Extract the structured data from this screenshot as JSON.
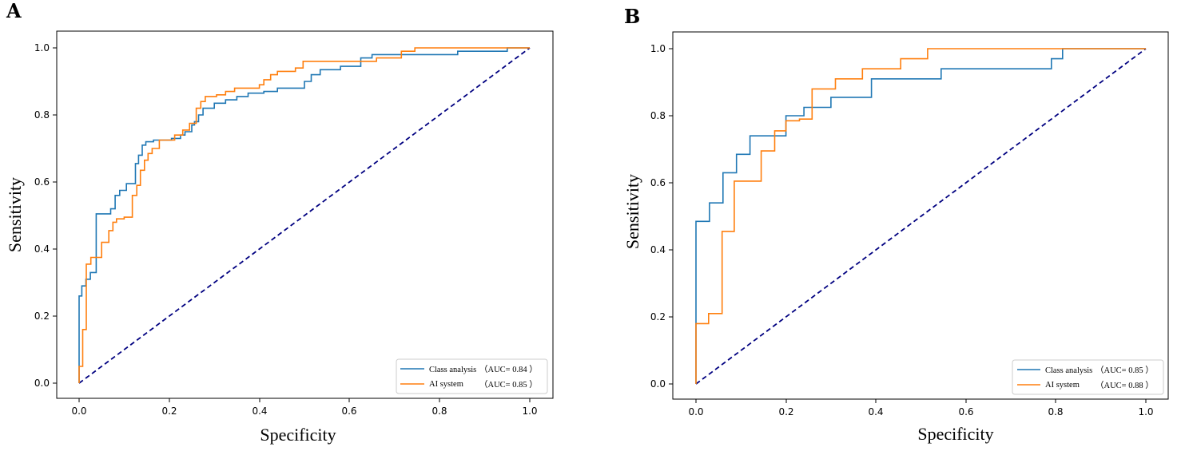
{
  "colors": {
    "class_analysis": "#1f77b4",
    "ai_system": "#ff7f0e",
    "chance": "#000080",
    "axes": "#000000"
  },
  "chart_data": [
    {
      "panel": "A",
      "type": "line",
      "xlabel": "Specificity",
      "ylabel": "Sensitivity",
      "xlim": [
        0.0,
        1.0
      ],
      "ylim": [
        0.0,
        1.0
      ],
      "xticks": [
        "0.0",
        "0.2",
        "0.4",
        "0.6",
        "0.8",
        "1.0"
      ],
      "yticks": [
        "0.0",
        "0.2",
        "0.4",
        "0.6",
        "0.8",
        "1.0"
      ],
      "grid": false,
      "legend_position": "bottom-right",
      "series": [
        {
          "name": "Class analysis",
          "auc": "（AUC= 0.84 ）",
          "color": "#1f77b4",
          "points": [
            [
              0,
              0
            ],
            [
              0,
              0.26
            ],
            [
              0.006,
              0.26
            ],
            [
              0.006,
              0.29
            ],
            [
              0.015,
              0.29
            ],
            [
              0.015,
              0.31
            ],
            [
              0.025,
              0.31
            ],
            [
              0.025,
              0.33
            ],
            [
              0.038,
              0.33
            ],
            [
              0.038,
              0.505
            ],
            [
              0.07,
              0.505
            ],
            [
              0.07,
              0.52
            ],
            [
              0.08,
              0.52
            ],
            [
              0.08,
              0.56
            ],
            [
              0.09,
              0.56
            ],
            [
              0.09,
              0.575
            ],
            [
              0.105,
              0.575
            ],
            [
              0.105,
              0.595
            ],
            [
              0.125,
              0.595
            ],
            [
              0.125,
              0.655
            ],
            [
              0.132,
              0.655
            ],
            [
              0.132,
              0.68
            ],
            [
              0.14,
              0.68
            ],
            [
              0.14,
              0.71
            ],
            [
              0.148,
              0.71
            ],
            [
              0.148,
              0.72
            ],
            [
              0.165,
              0.72
            ],
            [
              0.165,
              0.725
            ],
            [
              0.205,
              0.725
            ],
            [
              0.205,
              0.73
            ],
            [
              0.225,
              0.73
            ],
            [
              0.225,
              0.74
            ],
            [
              0.235,
              0.74
            ],
            [
              0.235,
              0.75
            ],
            [
              0.25,
              0.75
            ],
            [
              0.25,
              0.77
            ],
            [
              0.256,
              0.77
            ],
            [
              0.256,
              0.78
            ],
            [
              0.265,
              0.78
            ],
            [
              0.265,
              0.8
            ],
            [
              0.275,
              0.8
            ],
            [
              0.275,
              0.82
            ],
            [
              0.3,
              0.82
            ],
            [
              0.3,
              0.835
            ],
            [
              0.325,
              0.835
            ],
            [
              0.325,
              0.845
            ],
            [
              0.35,
              0.845
            ],
            [
              0.35,
              0.855
            ],
            [
              0.375,
              0.855
            ],
            [
              0.375,
              0.865
            ],
            [
              0.41,
              0.865
            ],
            [
              0.41,
              0.87
            ],
            [
              0.44,
              0.87
            ],
            [
              0.44,
              0.88
            ],
            [
              0.5,
              0.88
            ],
            [
              0.5,
              0.9
            ],
            [
              0.515,
              0.9
            ],
            [
              0.515,
              0.92
            ],
            [
              0.535,
              0.92
            ],
            [
              0.535,
              0.935
            ],
            [
              0.58,
              0.935
            ],
            [
              0.58,
              0.945
            ],
            [
              0.625,
              0.945
            ],
            [
              0.625,
              0.97
            ],
            [
              0.65,
              0.97
            ],
            [
              0.65,
              0.98
            ],
            [
              0.72,
              0.98
            ],
            [
              0.72,
              0.98
            ],
            [
              0.84,
              0.98
            ],
            [
              0.84,
              0.99
            ],
            [
              0.95,
              0.99
            ],
            [
              0.95,
              1.0
            ],
            [
              1.0,
              1.0
            ]
          ]
        },
        {
          "name": "AI system",
          "auc": "（AUC= 0.85 ）",
          "color": "#ff7f0e",
          "points": [
            [
              0,
              0
            ],
            [
              0,
              0.05
            ],
            [
              0.008,
              0.05
            ],
            [
              0.008,
              0.16
            ],
            [
              0.016,
              0.16
            ],
            [
              0.016,
              0.355
            ],
            [
              0.026,
              0.355
            ],
            [
              0.026,
              0.375
            ],
            [
              0.05,
              0.375
            ],
            [
              0.05,
              0.42
            ],
            [
              0.066,
              0.42
            ],
            [
              0.066,
              0.455
            ],
            [
              0.075,
              0.455
            ],
            [
              0.075,
              0.48
            ],
            [
              0.083,
              0.48
            ],
            [
              0.083,
              0.49
            ],
            [
              0.1,
              0.49
            ],
            [
              0.1,
              0.495
            ],
            [
              0.118,
              0.495
            ],
            [
              0.118,
              0.56
            ],
            [
              0.128,
              0.56
            ],
            [
              0.128,
              0.59
            ],
            [
              0.136,
              0.59
            ],
            [
              0.136,
              0.635
            ],
            [
              0.145,
              0.635
            ],
            [
              0.145,
              0.665
            ],
            [
              0.153,
              0.665
            ],
            [
              0.153,
              0.685
            ],
            [
              0.162,
              0.685
            ],
            [
              0.162,
              0.7
            ],
            [
              0.178,
              0.7
            ],
            [
              0.178,
              0.725
            ],
            [
              0.212,
              0.725
            ],
            [
              0.212,
              0.74
            ],
            [
              0.23,
              0.74
            ],
            [
              0.23,
              0.755
            ],
            [
              0.245,
              0.755
            ],
            [
              0.245,
              0.775
            ],
            [
              0.26,
              0.775
            ],
            [
              0.26,
              0.82
            ],
            [
              0.27,
              0.82
            ],
            [
              0.27,
              0.84
            ],
            [
              0.28,
              0.84
            ],
            [
              0.28,
              0.855
            ],
            [
              0.305,
              0.855
            ],
            [
              0.305,
              0.86
            ],
            [
              0.325,
              0.86
            ],
            [
              0.325,
              0.87
            ],
            [
              0.345,
              0.87
            ],
            [
              0.345,
              0.88
            ],
            [
              0.4,
              0.88
            ],
            [
              0.4,
              0.89
            ],
            [
              0.41,
              0.89
            ],
            [
              0.41,
              0.905
            ],
            [
              0.425,
              0.905
            ],
            [
              0.425,
              0.92
            ],
            [
              0.44,
              0.92
            ],
            [
              0.44,
              0.93
            ],
            [
              0.48,
              0.93
            ],
            [
              0.48,
              0.94
            ],
            [
              0.497,
              0.94
            ],
            [
              0.497,
              0.96
            ],
            [
              0.66,
              0.96
            ],
            [
              0.66,
              0.97
            ],
            [
              0.715,
              0.97
            ],
            [
              0.715,
              0.99
            ],
            [
              0.745,
              0.99
            ],
            [
              0.745,
              1.0
            ],
            [
              1.0,
              1.0
            ]
          ]
        }
      ],
      "reference_line": {
        "name": "chance",
        "points": [
          [
            0,
            0
          ],
          [
            1,
            1
          ]
        ]
      }
    },
    {
      "panel": "B",
      "type": "line",
      "xlabel": "Specificity",
      "ylabel": "Sensitivity",
      "xlim": [
        0.0,
        1.0
      ],
      "ylim": [
        0.0,
        1.0
      ],
      "xticks": [
        "0.0",
        "0.2",
        "0.4",
        "0.6",
        "0.8",
        "1.0"
      ],
      "yticks": [
        "0.0",
        "0.2",
        "0.4",
        "0.6",
        "0.8",
        "1.0"
      ],
      "grid": false,
      "legend_position": "bottom-right",
      "series": [
        {
          "name": "Class analysis",
          "auc": "（AUC= 0.85 ）",
          "color": "#1f77b4",
          "points": [
            [
              0,
              0
            ],
            [
              0,
              0.485
            ],
            [
              0.03,
              0.485
            ],
            [
              0.03,
              0.54
            ],
            [
              0.06,
              0.54
            ],
            [
              0.06,
              0.63
            ],
            [
              0.09,
              0.63
            ],
            [
              0.09,
              0.685
            ],
            [
              0.12,
              0.685
            ],
            [
              0.12,
              0.74
            ],
            [
              0.2,
              0.74
            ],
            [
              0.2,
              0.8
            ],
            [
              0.24,
              0.8
            ],
            [
              0.24,
              0.825
            ],
            [
              0.3,
              0.825
            ],
            [
              0.3,
              0.855
            ],
            [
              0.39,
              0.855
            ],
            [
              0.39,
              0.91
            ],
            [
              0.545,
              0.91
            ],
            [
              0.545,
              0.94
            ],
            [
              0.79,
              0.94
            ],
            [
              0.79,
              0.97
            ],
            [
              0.815,
              0.97
            ],
            [
              0.815,
              1.0
            ],
            [
              1.0,
              1.0
            ]
          ]
        },
        {
          "name": "AI system",
          "auc": "（AUC= 0.88 ）",
          "color": "#ff7f0e",
          "points": [
            [
              0,
              0
            ],
            [
              0,
              0.18
            ],
            [
              0.028,
              0.18
            ],
            [
              0.028,
              0.21
            ],
            [
              0.058,
              0.21
            ],
            [
              0.058,
              0.455
            ],
            [
              0.085,
              0.455
            ],
            [
              0.085,
              0.605
            ],
            [
              0.145,
              0.605
            ],
            [
              0.145,
              0.695
            ],
            [
              0.175,
              0.695
            ],
            [
              0.175,
              0.755
            ],
            [
              0.2,
              0.755
            ],
            [
              0.2,
              0.785
            ],
            [
              0.23,
              0.785
            ],
            [
              0.23,
              0.79
            ],
            [
              0.258,
              0.79
            ],
            [
              0.258,
              0.88
            ],
            [
              0.31,
              0.88
            ],
            [
              0.31,
              0.91
            ],
            [
              0.37,
              0.91
            ],
            [
              0.37,
              0.94
            ],
            [
              0.455,
              0.94
            ],
            [
              0.455,
              0.97
            ],
            [
              0.515,
              0.97
            ],
            [
              0.515,
              1.0
            ],
            [
              1.0,
              1.0
            ]
          ]
        }
      ],
      "reference_line": {
        "name": "chance",
        "points": [
          [
            0,
            0
          ],
          [
            1,
            1
          ]
        ]
      }
    }
  ]
}
